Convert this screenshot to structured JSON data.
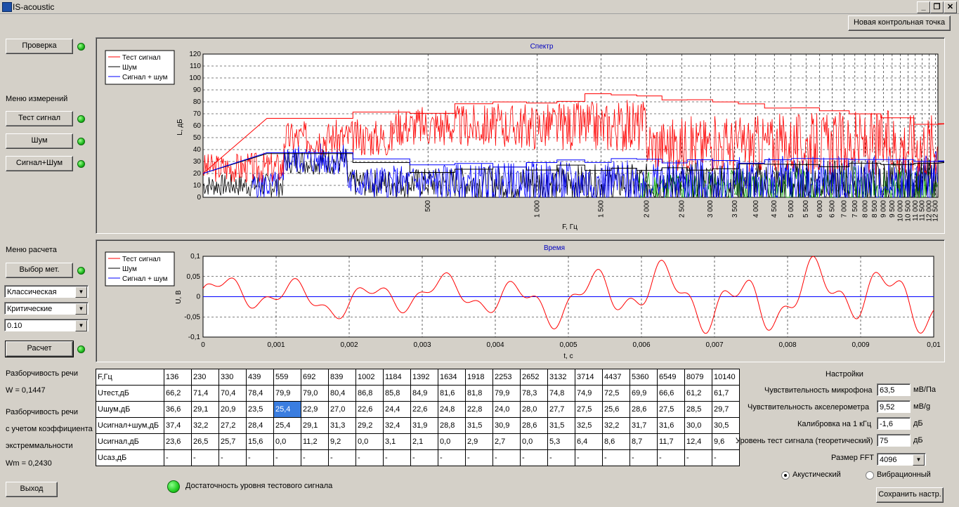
{
  "window": {
    "title": "IS-acoustic"
  },
  "header": {
    "new_checkpoint": "Новая контрольная точка"
  },
  "left": {
    "check_button": "Проверка",
    "measure_menu_label": "Меню измерений",
    "test_signal_button": "Тест сигнал",
    "noise_button": "Шум",
    "signal_noise_button": "Сигнал+Шум",
    "calc_menu_label": "Меню расчета",
    "method_button": "Выбор мет.",
    "method_combo": "Классическая",
    "band_combo": "Критические",
    "value_combo": "0.10",
    "calc_button": "Расчет",
    "intelligibility_label": "Разборчивость речи",
    "intelligibility_value": "W = 0,1447",
    "intelligibility2_line1": "Разборчивость речи",
    "intelligibility2_line2": "с учетом коэффициента",
    "intelligibility2_line3": "экстреммальности",
    "intelligibility2_value": "Wm = 0,2430",
    "exit_button": "Выход"
  },
  "spectrum": {
    "title": "Спектр",
    "ylabel": "L, дБ",
    "xlabel": "F, Гц",
    "legend": [
      "Тест сигнал",
      "Шум",
      "Сигнал + шум"
    ],
    "yticks": [
      "0",
      "10",
      "20",
      "30",
      "40",
      "50",
      "60",
      "70",
      "80",
      "90",
      "100",
      "110",
      "120"
    ],
    "xticks": [
      "500",
      "1 000",
      "1 500",
      "2 000",
      "2 500",
      "3 000",
      "3 500",
      "4 000",
      "4 500",
      "5 000",
      "5 500",
      "6 000",
      "6 500",
      "7 000",
      "7 500",
      "8 000",
      "8 500",
      "9 000",
      "9 500",
      "10 000",
      "10 500",
      "11 000",
      "11 500",
      "12 000",
      "12 500"
    ]
  },
  "time": {
    "title": "Время",
    "ylabel": "U, В",
    "xlabel": "t, c",
    "legend": [
      "Тест сигнал",
      "Шум",
      "Сигнал + шум"
    ],
    "yticks": [
      "0,1",
      "0,05",
      "0",
      "-0,05",
      "-0,1"
    ],
    "xticks": [
      "0",
      "0,001",
      "0,002",
      "0,003",
      "0,004",
      "0,005",
      "0,006",
      "0,007",
      "0,008",
      "0,009",
      "0,01"
    ]
  },
  "table": {
    "header": [
      "F,Гц",
      "136",
      "230",
      "330",
      "439",
      "559",
      "692",
      "839",
      "1002",
      "1184",
      "1392",
      "1634",
      "1918",
      "2253",
      "2652",
      "3132",
      "3714",
      "4437",
      "5360",
      "6549",
      "8079",
      "10140"
    ],
    "rows": [
      [
        "Uтест,дБ",
        "66,2",
        "71,4",
        "70,4",
        "78,4",
        "79,9",
        "79,0",
        "80,4",
        "86,8",
        "85,8",
        "84,9",
        "81,6",
        "81,8",
        "79,9",
        "78,3",
        "74,8",
        "74,9",
        "72,5",
        "69,9",
        "66,6",
        "61,2",
        "61,7"
      ],
      [
        "Uшум,дБ",
        "36,6",
        "29,1",
        "20,9",
        "23,5",
        "25,4",
        "22,9",
        "27,0",
        "22,6",
        "24,4",
        "22,6",
        "24,8",
        "22,8",
        "24,0",
        "28,0",
        "27,7",
        "27,5",
        "25,6",
        "28,6",
        "27,5",
        "28,5",
        "29,7"
      ],
      [
        "Uсигнал+шум,дБ",
        "37,4",
        "32,2",
        "27,2",
        "28,4",
        "25,4",
        "29,1",
        "31,3",
        "29,2",
        "32,4",
        "31,9",
        "28,8",
        "31,5",
        "30,9",
        "28,6",
        "31,5",
        "32,5",
        "32,2",
        "31,7",
        "31,6",
        "30,0",
        "30,5"
      ],
      [
        "Uсигнал,дБ",
        "23,6",
        "26,5",
        "25,7",
        "15,6",
        "0,0",
        "11,2",
        "9,2",
        "0,0",
        "3,1",
        "2,1",
        "0,0",
        "2,9",
        "2,7",
        "0,0",
        "5,3",
        "6,4",
        "8,6",
        "8,7",
        "11,7",
        "12,4",
        "9,6"
      ],
      [
        "Uсаз,дБ",
        "-",
        "-",
        "-",
        "-",
        "-",
        "-",
        "-",
        "-",
        "-",
        "-",
        "-",
        "-",
        "-",
        "-",
        "-",
        "-",
        "-",
        "-",
        "-",
        "-",
        "-"
      ]
    ]
  },
  "status": {
    "sufficiency": "Достаточность уровня тестового сигнала"
  },
  "settings": {
    "title": "Настройки",
    "mic_label": "Чувствительность микрофона",
    "mic_value": "63,5",
    "mic_unit": "мВ/Па",
    "acc_label": "Чувствительность акселерометра",
    "acc_value": "9,52",
    "acc_unit": "мВ/g",
    "cal_label": "Калибровка на 1 кГц",
    "cal_value": "-1,6",
    "cal_unit": "дБ",
    "level_label": "Уровень тест сигнала (теоретический)",
    "level_value": "75",
    "level_unit": "дБ",
    "fft_label": "Размер FFT",
    "fft_value": "4096",
    "radio_acoustic": "Акустический",
    "radio_vibration": "Вибрационный",
    "save_button": "Сохранить настр."
  },
  "colors": {
    "test": "#ff0000",
    "noise": "#000000",
    "sig_noise": "#0000ff",
    "green": "#00a000"
  }
}
